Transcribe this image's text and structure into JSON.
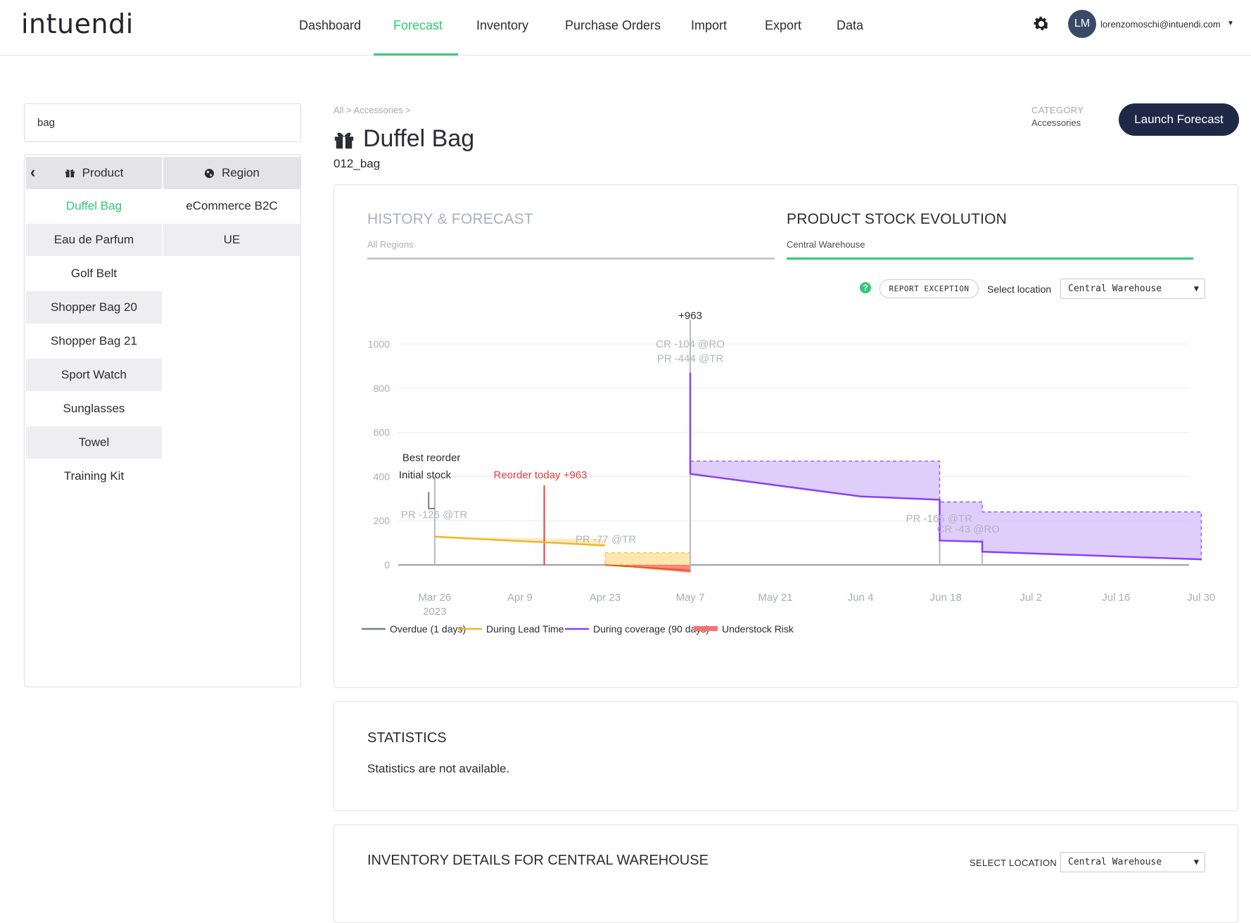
{
  "app": {
    "logo": "intuendi"
  },
  "nav": {
    "items": [
      "Dashboard",
      "Forecast",
      "Inventory",
      "Purchase Orders",
      "Import",
      "Export",
      "Data"
    ],
    "active": "Forecast"
  },
  "user": {
    "initials": "LM",
    "email": "lorenzomoschi@intuendi.com"
  },
  "search": {
    "value": "bag"
  },
  "left": {
    "product_header": "Product",
    "region_header": "Region",
    "products": [
      "Duffel Bag",
      "Eau de Parfum",
      "Golf Belt",
      "Shopper Bag 20",
      "Shopper Bag 21",
      "Sport Watch",
      "Sunglasses",
      "Towel",
      "Training Kit"
    ],
    "selected_product": "Duffel Bag",
    "regions": [
      "eCommerce B2C",
      "UE"
    ]
  },
  "header": {
    "breadcrumb": "All > Accessories >",
    "title": "Duffel Bag",
    "code": "012_bag",
    "category_label": "CATEGORY",
    "category_value": "Accessories",
    "launch_label": "Launch Forecast"
  },
  "tabs": {
    "history_title": "HISTORY & FORECAST",
    "history_sub": "All Regions",
    "stock_title": "PRODUCT STOCK EVOLUTION",
    "stock_sub": "Central Warehouse",
    "active": "stock"
  },
  "controls": {
    "help": "?",
    "report_label": "REPORT EXCEPTION",
    "select_label": "Select location",
    "location": "Central Warehouse"
  },
  "colors": {
    "accent": "#2ecc71",
    "navy": "#1f2947",
    "overdue": "#7a7f8a",
    "lead_time": "#f0b429",
    "coverage": "#8a3ffc",
    "coverage_fill": "#d9c4fb",
    "understock": "#f87171",
    "reorder": "#e53e3e"
  },
  "chart_data": {
    "type": "line",
    "x_ticks": [
      "Mar 26",
      "Apr 9",
      "Apr 23",
      "May 7",
      "May 21",
      "Jun 4",
      "Jun 18",
      "Jul 2",
      "Jul 16",
      "Jul 30"
    ],
    "x_year_label": "2023",
    "y_ticks": [
      "0",
      "200",
      "400",
      "600",
      "800",
      "1000"
    ],
    "ylim": [
      0,
      1000
    ],
    "legend": [
      "Overdue (1 days)",
      "During Lead Time",
      "During coverage (90 days)",
      "Understock Risk"
    ],
    "annotations": {
      "best_reorder": "Best reorder",
      "initial_stock": "Initial stock",
      "reorder_today": "Reorder today +963",
      "peak": "+963",
      "cr_peak": "CR -104 @RO",
      "pr_peak": "PR -444 @TR",
      "pr_initial": "PR -126 @TR",
      "pr_lead": "PR -77 @TR",
      "pr_jun": "PR -165 @TR",
      "cr_jun": "CR -43 @RO"
    },
    "series": [
      {
        "name": "During Lead Time",
        "points": [
          [
            "Mar 26",
            128
          ],
          [
            "Apr 23",
            88
          ]
        ]
      },
      {
        "name": "During coverage (90 days)",
        "points": [
          [
            "May 7",
            412
          ],
          [
            "Jun 4",
            310
          ],
          [
            "Jun 17",
            295
          ],
          [
            "Jun 17",
            110
          ],
          [
            "Jun 24",
            105
          ],
          [
            "Jun 24",
            60
          ],
          [
            "Jul 30",
            25
          ]
        ]
      },
      {
        "name": "Understock Risk",
        "points": [
          [
            "Apr 23",
            0
          ],
          [
            "May 7",
            -35
          ]
        ]
      }
    ]
  },
  "statistics": {
    "title": "STATISTICS",
    "text": "Statistics are not available."
  },
  "inventory": {
    "title": "INVENTORY DETAILS FOR CENTRAL WAREHOUSE",
    "select_label": "SELECT LOCATION",
    "location": "Central Warehouse"
  }
}
